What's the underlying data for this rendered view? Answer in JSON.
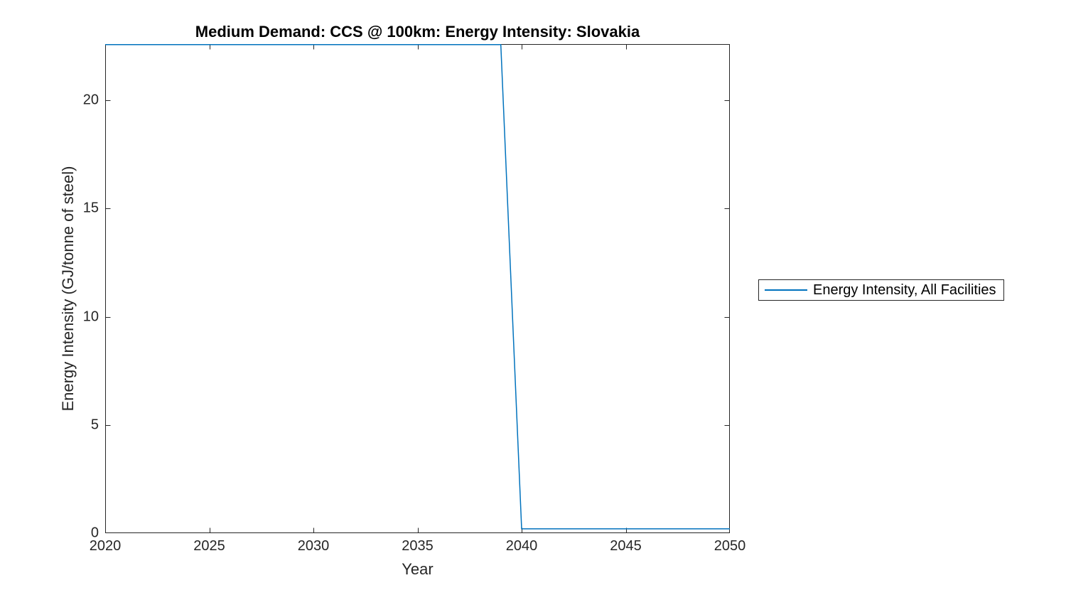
{
  "chart_data": {
    "type": "line",
    "title": "Medium Demand: CCS @ 100km: Energy Intensity: Slovakia",
    "xlabel": "Year",
    "ylabel": "Energy Intensity (GJ/tonne of steel)",
    "xlim": [
      2020,
      2050
    ],
    "ylim": [
      0,
      22.6
    ],
    "xticks": [
      2020,
      2025,
      2030,
      2035,
      2040,
      2045,
      2050
    ],
    "yticks": [
      0,
      5,
      10,
      15,
      20
    ],
    "grid": false,
    "box": true,
    "tick_direction": "in",
    "axis_color": "#262626",
    "background": "#ffffff",
    "legend": {
      "position": "outside-right",
      "entries": [
        {
          "label": "Energy Intensity, All Facilities",
          "color": "#0072BD"
        }
      ]
    },
    "series": [
      {
        "name": "Energy Intensity, All Facilities",
        "color": "#0072BD",
        "line_width": 1.5,
        "x": [
          2020,
          2021,
          2022,
          2023,
          2024,
          2025,
          2026,
          2027,
          2028,
          2029,
          2030,
          2031,
          2032,
          2033,
          2034,
          2035,
          2036,
          2037,
          2038,
          2039,
          2040,
          2041,
          2042,
          2043,
          2044,
          2045,
          2046,
          2047,
          2048,
          2049,
          2050
        ],
        "y": [
          22.6,
          22.6,
          22.6,
          22.6,
          22.6,
          22.6,
          22.6,
          22.6,
          22.6,
          22.6,
          22.6,
          22.6,
          22.6,
          22.6,
          22.6,
          22.6,
          22.6,
          22.6,
          22.6,
          22.6,
          0.2,
          0.2,
          0.2,
          0.2,
          0.2,
          0.2,
          0.2,
          0.2,
          0.2,
          0.2,
          0.2
        ]
      }
    ]
  }
}
